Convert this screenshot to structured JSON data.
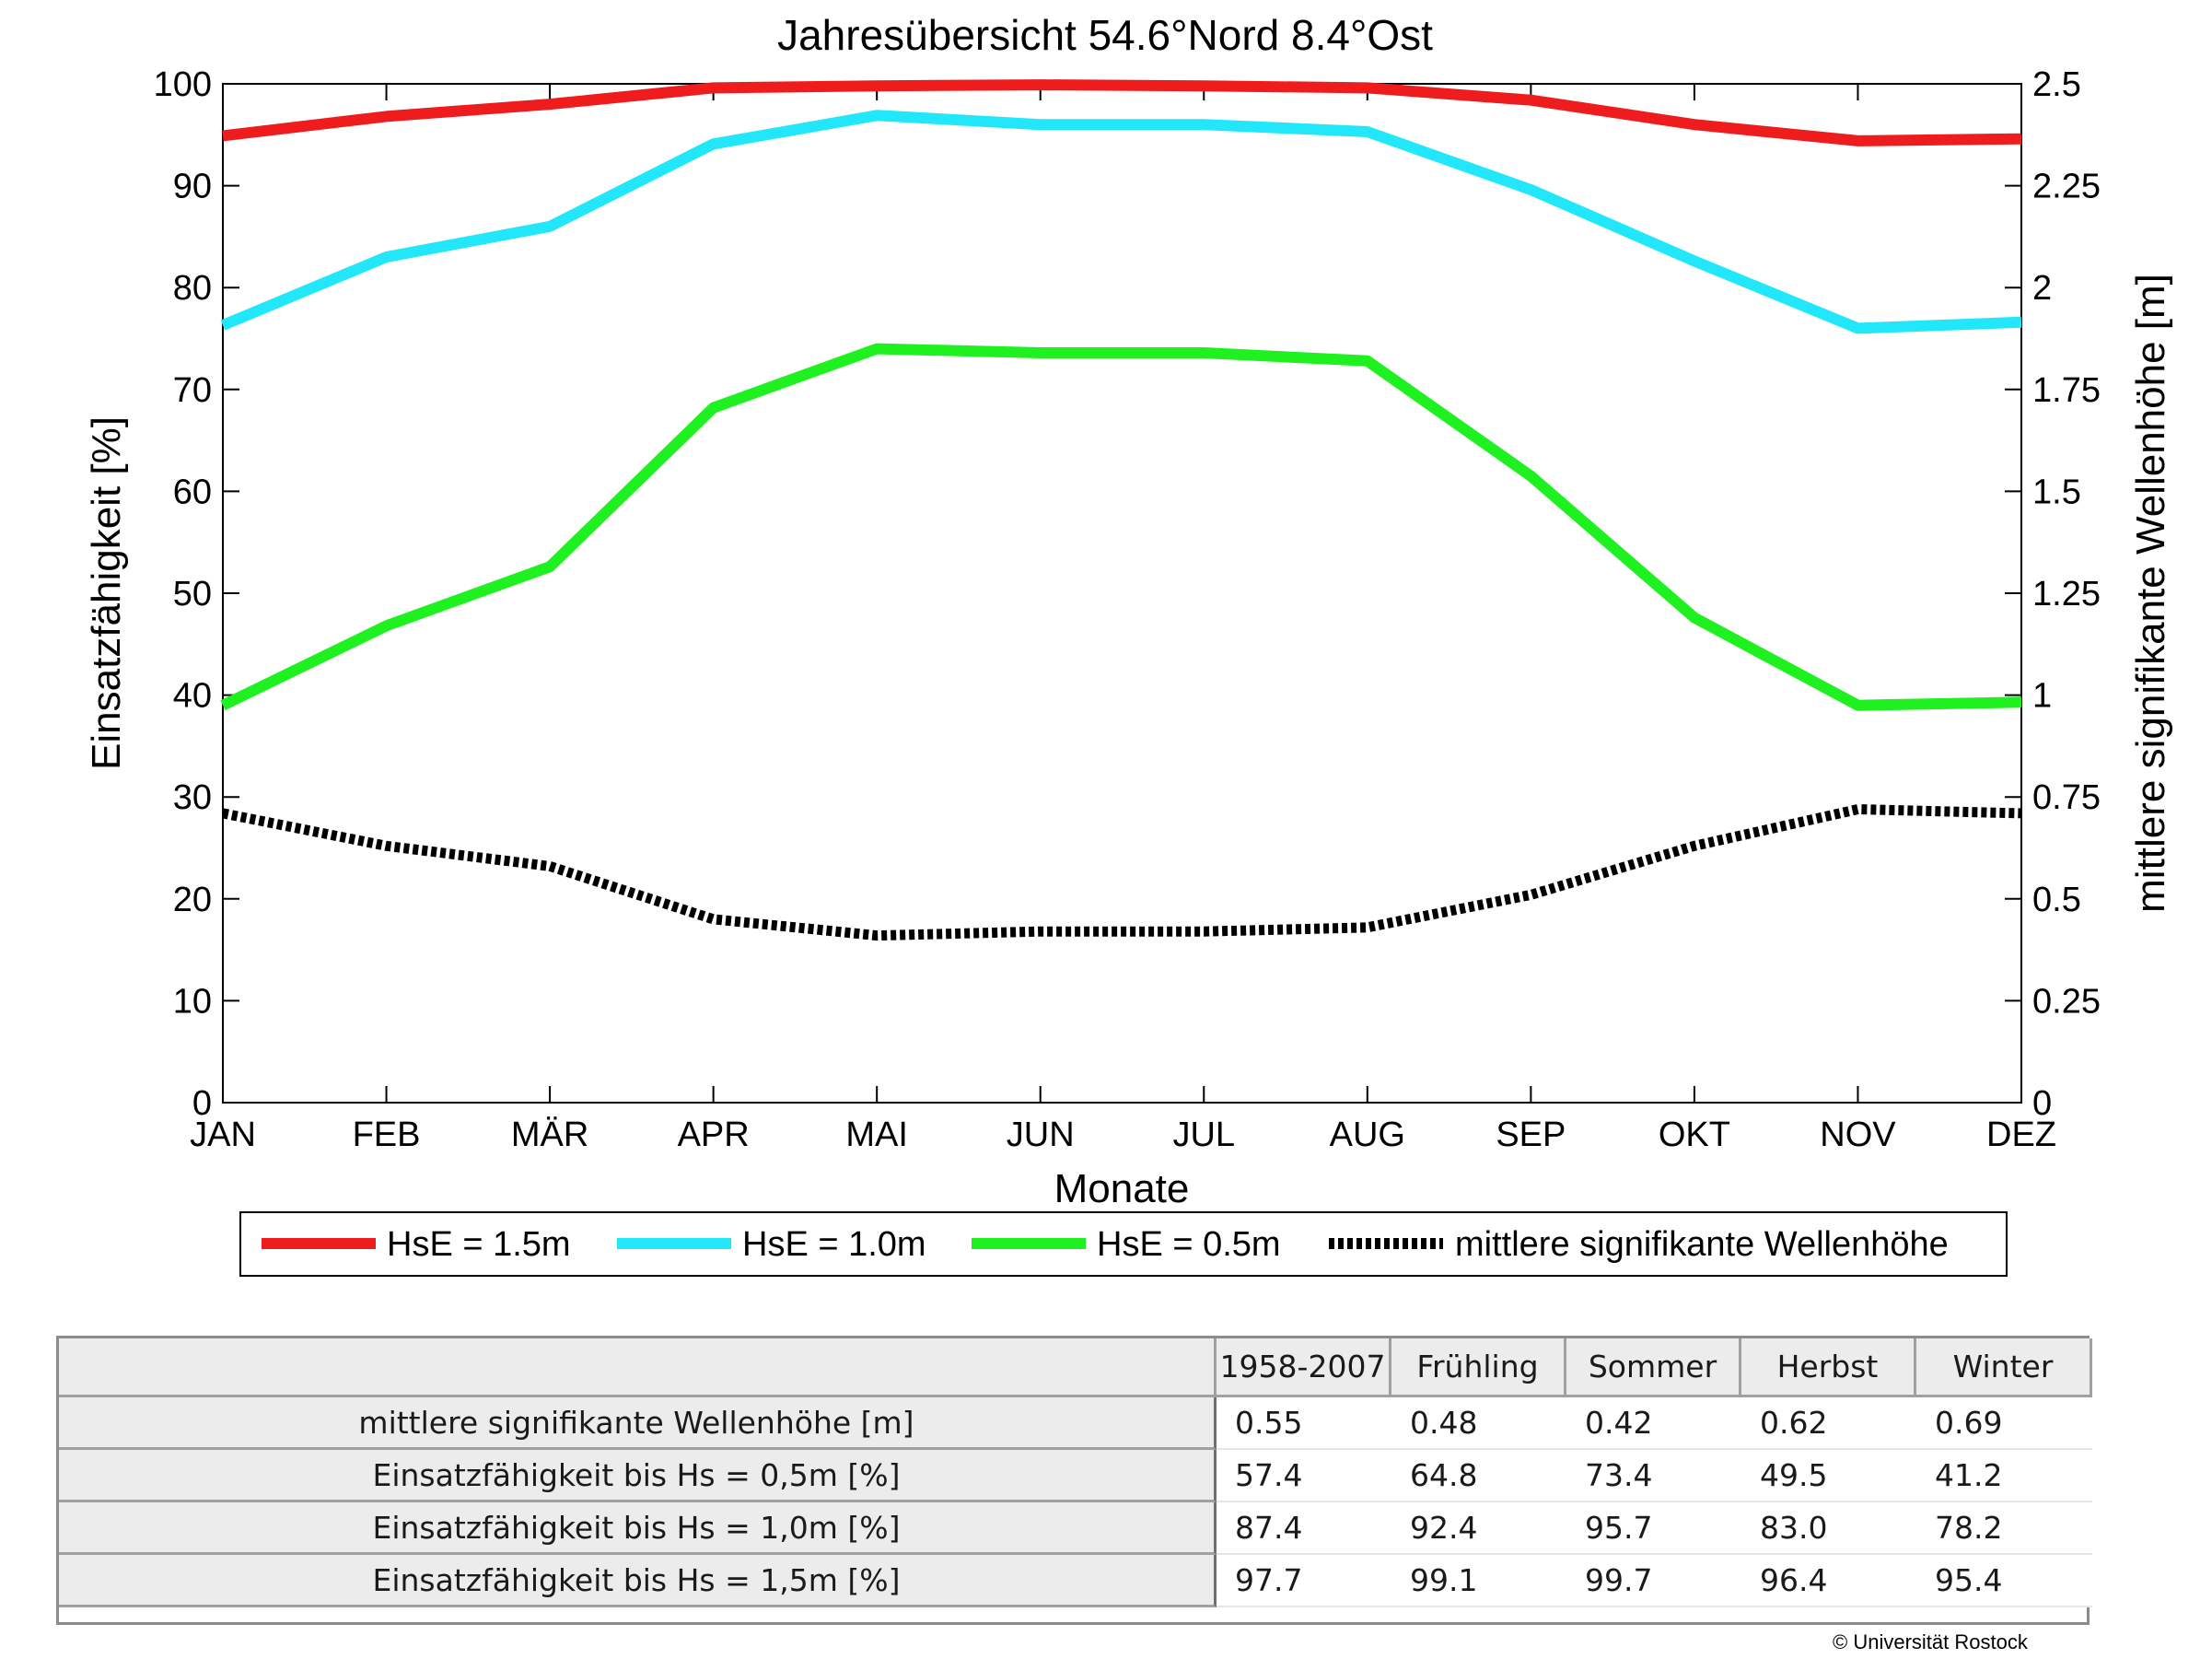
{
  "chart_data": {
    "type": "line",
    "title": "Jahresübersicht  54.6°Nord  8.4°Ost",
    "xlabel": "Monate",
    "ylabel": "Einsatzfähigkeit [%]",
    "y2label": "mittlere signifikante Wellenhöhe [m]",
    "categories": [
      "JAN",
      "FEB",
      "MÄR",
      "APR",
      "MAI",
      "JUN",
      "JUL",
      "AUG",
      "SEP",
      "OKT",
      "NOV",
      "DEZ"
    ],
    "ylim": [
      0,
      100
    ],
    "y2lim": [
      0,
      2.5
    ],
    "yticks": [
      "0",
      "10",
      "20",
      "30",
      "40",
      "50",
      "60",
      "70",
      "80",
      "90",
      "100"
    ],
    "y2ticks": [
      "0",
      "0.25",
      "0.5",
      "0.75",
      "1",
      "1.25",
      "1.5",
      "1.75",
      "2",
      "2.25",
      "2.5"
    ],
    "grid": false,
    "legend_position": "bottom",
    "series": [
      {
        "name": "HsE = 1.5m",
        "axis": "left",
        "color": "#ee1c1c",
        "style": "solid",
        "values": [
          94.9,
          96.8,
          98.0,
          99.6,
          99.8,
          99.9,
          99.8,
          99.6,
          98.4,
          96.0,
          94.4,
          94.6
        ]
      },
      {
        "name": "HsE = 1.0m",
        "axis": "left",
        "color": "#22e6fa",
        "style": "solid",
        "values": [
          76.3,
          83.0,
          86.0,
          94.1,
          96.9,
          96.0,
          96.0,
          95.3,
          89.6,
          82.6,
          76.0,
          76.6
        ]
      },
      {
        "name": "HsE = 0.5m",
        "axis": "left",
        "color": "#1ff01f",
        "style": "solid",
        "values": [
          39.0,
          46.8,
          52.6,
          68.2,
          74.0,
          73.6,
          73.6,
          72.8,
          61.5,
          47.6,
          39.0,
          39.3
        ]
      },
      {
        "name": "mittlere signifikante Wellenhöhe",
        "axis": "right",
        "color": "#000000",
        "style": "dotted",
        "values": [
          0.71,
          0.63,
          0.58,
          0.45,
          0.41,
          0.42,
          0.42,
          0.43,
          0.51,
          0.63,
          0.72,
          0.71
        ]
      }
    ]
  },
  "table": {
    "columns": [
      "1958-2007",
      "Frühling",
      "Sommer",
      "Herbst",
      "Winter"
    ],
    "rows": [
      {
        "label": "mittlere signifikante Wellenhöhe [m]",
        "values": [
          "0.55",
          "0.48",
          "0.42",
          "0.62",
          "0.69"
        ]
      },
      {
        "label": "Einsatzfähigkeit bis Hs = 0,5m [%]",
        "values": [
          "57.4",
          "64.8",
          "73.4",
          "49.5",
          "41.2"
        ]
      },
      {
        "label": "Einsatzfähigkeit bis Hs = 1,0m [%]",
        "values": [
          "87.4",
          "92.4",
          "95.7",
          "83.0",
          "78.2"
        ]
      },
      {
        "label": "Einsatzfähigkeit bis Hs = 1,5m [%]",
        "values": [
          "97.7",
          "99.1",
          "99.7",
          "96.4",
          "95.4"
        ]
      }
    ]
  },
  "copyright": "© Universität Rostock"
}
